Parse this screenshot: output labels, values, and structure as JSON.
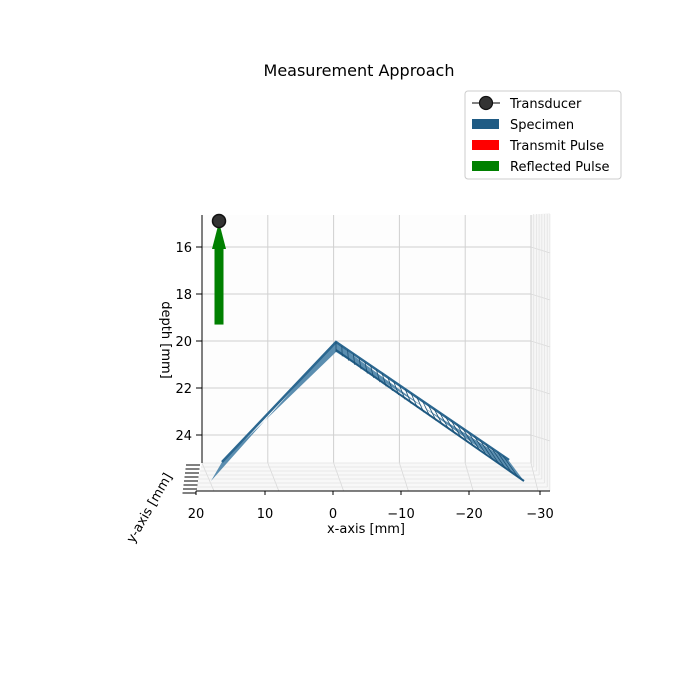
{
  "chart_data": {
    "type": "3d-line",
    "title": "Measurement Approach",
    "xlabel": "x-axis [mm]",
    "ylabel": "y-axis [mm]",
    "zlabel": "depth [mm]",
    "xlim": [
      20,
      -30
    ],
    "zlim": [
      15,
      25
    ],
    "x_ticks": [
      "20",
      "10",
      "0",
      "−10",
      "−20",
      "−30"
    ],
    "z_ticks": [
      "16",
      "18",
      "20",
      "22",
      "24"
    ],
    "grid": true,
    "legend_position": "top-right",
    "legend": [
      {
        "label": "Transducer",
        "color": "#1a1a1a",
        "marker": "circle"
      },
      {
        "label": "Specimen",
        "color": "#1f5b84",
        "marker": "patch"
      },
      {
        "label": "Transmit Pulse",
        "color": "#ff0000",
        "marker": "patch"
      },
      {
        "label": "Reflected Pulse",
        "color": "#008000",
        "marker": "patch"
      }
    ],
    "series": [
      {
        "name": "Transducer",
        "type": "point",
        "x": 17,
        "z": 15.1
      },
      {
        "name": "Specimen",
        "type": "line",
        "points": [
          [
            17,
            25.5
          ],
          [
            0,
            20
          ],
          [
            -28,
            25.5
          ]
        ]
      },
      {
        "name": "Reflected Pulse",
        "type": "arrow",
        "x": 17,
        "z_from": 19.3,
        "z_to": 15.2
      },
      {
        "name": "Transmit Pulse",
        "type": "arrow",
        "x": 17,
        "z_from": 15.2,
        "z_to": 15.2
      }
    ]
  }
}
